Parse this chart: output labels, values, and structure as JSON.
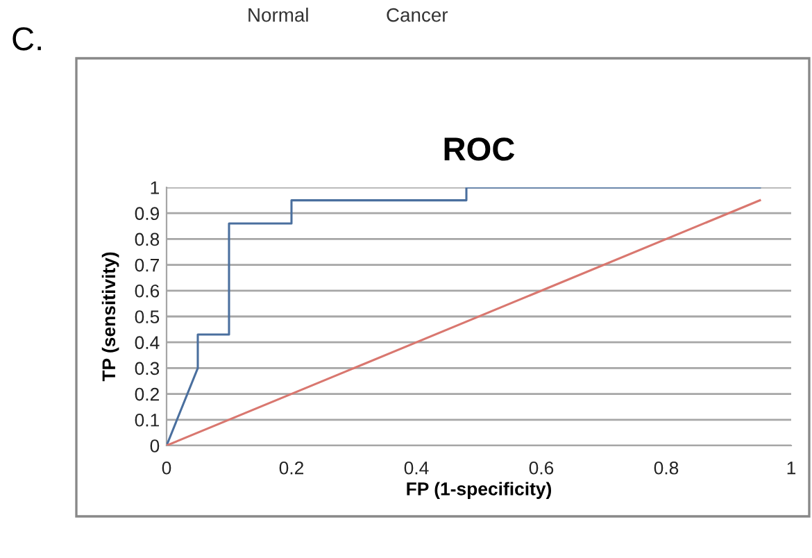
{
  "chart_data": {
    "type": "line",
    "title": "ROC",
    "xlabel": "FP (1-specificity)",
    "ylabel": "TP (sensitivity)",
    "annotations": [
      "C.",
      "Normal",
      "Cancer"
    ],
    "series": [
      {
        "color": "#4a6f9e",
        "x": [
          0,
          0.05,
          0.05,
          0.1,
          0.1,
          0.2,
          0.2,
          0.48,
          0.48,
          0.95
        ],
        "values": [
          0,
          0.3,
          0.43,
          0.43,
          0.86,
          0.86,
          0.95,
          0.95,
          1,
          1
        ]
      },
      {
        "color": "#d9776f",
        "x": [
          0,
          0.95
        ],
        "values": [
          0,
          0.95
        ]
      }
    ],
    "xlim": [
      0,
      1
    ],
    "xticks": [
      0,
      0.2,
      0.4,
      0.6,
      0.8,
      1
    ],
    "ylim": [
      0,
      1
    ],
    "yticks": [
      0,
      0.1,
      0.2,
      0.3,
      0.4,
      0.5,
      0.6,
      0.7,
      0.8,
      0.9,
      1
    ],
    "grid": "y",
    "legend": false,
    "marker": "none",
    "line_style": "solid"
  }
}
